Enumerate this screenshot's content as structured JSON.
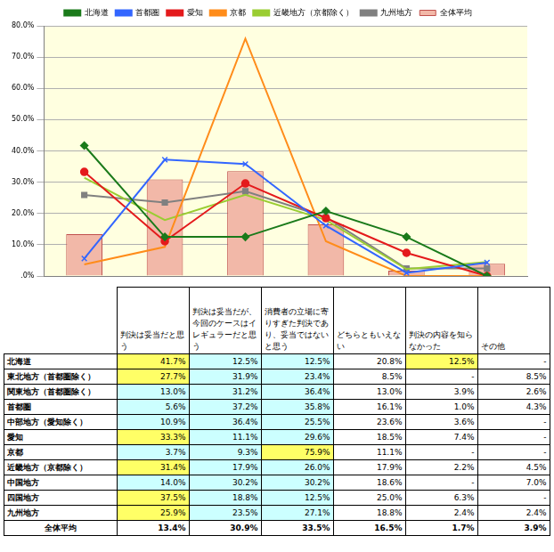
{
  "chart_data": {
    "type": "bar",
    "categories": [
      null,
      null,
      null,
      null,
      null,
      null
    ],
    "ylim": [
      0,
      80
    ],
    "yticks": [
      {
        "value": 0,
        "label": ".0%"
      },
      {
        "value": 10,
        "label": "10.0%"
      },
      {
        "value": 20,
        "label": "20.0%"
      },
      {
        "value": 30,
        "label": "30.0%"
      },
      {
        "value": 40,
        "label": "40.0%"
      },
      {
        "value": 50,
        "label": "50.0%"
      },
      {
        "value": 60,
        "label": "60.0%"
      },
      {
        "value": 70,
        "label": "70.0%"
      },
      {
        "value": 80,
        "label": "80.0%"
      }
    ],
    "grid": true,
    "legend": "top",
    "tick_labels": "y",
    "series": [
      {
        "name": "全体平均",
        "type": "bar",
        "color": "#f2b8a8",
        "values": [
          13.4,
          30.9,
          33.5,
          16.5,
          1.7,
          3.9
        ]
      },
      {
        "name": "北海道",
        "type": "line",
        "color": "#1a7a1a",
        "marker": "diamond",
        "values": [
          41.7,
          12.5,
          12.5,
          20.8,
          12.5,
          0
        ]
      },
      {
        "name": "首都圏",
        "type": "line",
        "color": "#3366ff",
        "marker": "x",
        "values": [
          5.6,
          37.2,
          35.8,
          16.1,
          1.0,
          4.3
        ]
      },
      {
        "name": "愛知",
        "type": "line",
        "color": "#e41a1c",
        "marker": "circle",
        "values": [
          33.3,
          11.1,
          29.6,
          18.5,
          7.4,
          0
        ]
      },
      {
        "name": "京都",
        "type": "line",
        "color": "#ff8c1a",
        "marker": "none",
        "values": [
          3.7,
          9.3,
          75.9,
          11.1,
          0,
          0
        ]
      },
      {
        "name": "近畿地方（京都除く）",
        "type": "line",
        "color": "#9acd32",
        "marker": "none",
        "values": [
          31.4,
          17.9,
          26.0,
          17.9,
          2.2,
          4.5
        ]
      },
      {
        "name": "九州地方",
        "type": "line",
        "color": "#808080",
        "marker": "square",
        "values": [
          25.9,
          23.5,
          27.1,
          18.8,
          2.4,
          2.4
        ]
      }
    ]
  },
  "table": {
    "header": [
      "判決は妥当だと思う",
      "判決は妥当だが、今回のケースはイレギュラーだと思う",
      "消費者の立場に寄りすぎた判決であり、妥当ではないと思う",
      "どちらともいえない",
      "判決の内容を知らなかった",
      "その他"
    ],
    "rows": [
      {
        "label": "北海道",
        "cells": [
          {
            "text": "41.7%",
            "highlight": true
          },
          "12.5%",
          "12.5%",
          "20.8%",
          {
            "text": "12.5%",
            "highlight": true
          },
          "-"
        ]
      },
      {
        "label": "東北地方（首都圏除く）",
        "cells": [
          {
            "text": "27.7%",
            "highlight": true
          },
          "31.9%",
          "23.4%",
          "8.5%",
          "-",
          "8.5%"
        ]
      },
      {
        "label": "関東地方（首都圏除く）",
        "cells": [
          "13.0%",
          "31.2%",
          "36.4%",
          "13.0%",
          "3.9%",
          "2.6%"
        ]
      },
      {
        "label": "首都圏",
        "cells": [
          "5.6%",
          "37.2%",
          "35.8%",
          "16.1%",
          "1.0%",
          "4.3%"
        ]
      },
      {
        "label": "中部地方（愛知除く）",
        "cells": [
          "10.9%",
          "36.4%",
          "25.5%",
          "23.6%",
          "3.6%",
          "-"
        ]
      },
      {
        "label": "愛知",
        "cells": [
          {
            "text": "33.3%",
            "highlight": true
          },
          "11.1%",
          "29.6%",
          "18.5%",
          "7.4%",
          "-"
        ]
      },
      {
        "label": "京都",
        "cells": [
          "3.7%",
          "9.3%",
          {
            "text": "75.9%",
            "highlight": true
          },
          "11.1%",
          "-",
          "-"
        ]
      },
      {
        "label": "近畿地方（京都除く）",
        "cells": [
          {
            "text": "31.4%",
            "highlight": true
          },
          "17.9%",
          "26.0%",
          "17.9%",
          "2.2%",
          "4.5%"
        ]
      },
      {
        "label": "中国地方",
        "cells": [
          "14.0%",
          "30.2%",
          "30.2%",
          "18.6%",
          "-",
          "7.0%"
        ]
      },
      {
        "label": "四国地方",
        "cells": [
          {
            "text": "37.5%",
            "highlight": true
          },
          "18.8%",
          "12.5%",
          "25.0%",
          "6.3%",
          "-"
        ]
      },
      {
        "label": "九州地方",
        "cells": [
          {
            "text": "25.9%",
            "highlight": true
          },
          "23.5%",
          "27.1%",
          "18.8%",
          "2.4%",
          "2.4%"
        ]
      }
    ],
    "total": {
      "label": "全体平均",
      "cells": [
        "13.4%",
        "30.9%",
        "33.5%",
        "16.5%",
        "1.7%",
        "3.9%"
      ]
    }
  }
}
